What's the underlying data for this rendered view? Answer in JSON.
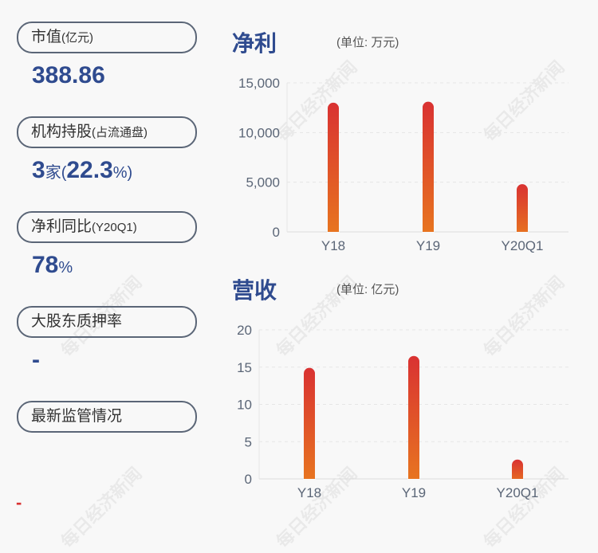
{
  "left": {
    "items": [
      {
        "label": "市值",
        "sub": "(亿元)",
        "value": "388.86",
        "unit": ""
      },
      {
        "label": "机构持股",
        "sub": "(占流通盘)",
        "value": "3",
        "unit": "家",
        "value2": "22.3",
        "unit2": "%"
      },
      {
        "label": "净利同比",
        "sub": "(Y20Q1)",
        "value": "78",
        "unit": "%"
      },
      {
        "label": "大股东质押率",
        "sub": "",
        "value": "-",
        "unit": ""
      },
      {
        "label": "最新监管情况",
        "sub": "",
        "value": "-",
        "unit": ""
      }
    ]
  },
  "watermark": "每日经济新闻",
  "chart_data": [
    {
      "type": "bar",
      "title": "净利",
      "unit": "(单位: 万元)",
      "categories": [
        "Y18",
        "Y19",
        "Y20Q1"
      ],
      "values": [
        13000,
        13100,
        4800
      ],
      "ylim": [
        0,
        15000
      ],
      "yticks": [
        "0",
        "5,000",
        "10,000",
        "15,000"
      ],
      "grid": true,
      "colors": [
        "#e8771f",
        "#d93232"
      ]
    },
    {
      "type": "bar",
      "title": "营收",
      "unit": "(单位: 亿元)",
      "categories": [
        "Y18",
        "Y19",
        "Y20Q1"
      ],
      "values": [
        14.9,
        16.5,
        2.6
      ],
      "ylim": [
        0,
        20
      ],
      "yticks": [
        "0",
        "5",
        "10",
        "15",
        "20"
      ],
      "grid": true,
      "colors": [
        "#e8771f",
        "#d93232"
      ]
    }
  ]
}
